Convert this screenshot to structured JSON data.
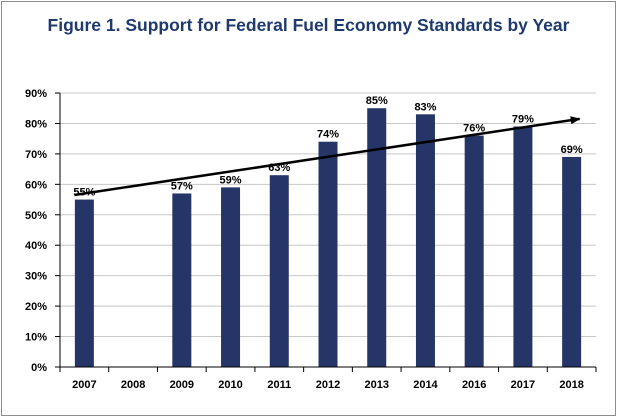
{
  "colors": {
    "title": "#1f3a6e",
    "bar": "#253568",
    "grid": "#c8c8c8",
    "axis": "#000000",
    "trend": "#000000"
  },
  "chart_data": {
    "type": "bar",
    "title": "Figure 1. Support for Federal Fuel Economy Standards by Year",
    "xlabel": "",
    "ylabel": "",
    "categories": [
      "2007",
      "2008",
      "2009",
      "2010",
      "2011",
      "2012",
      "2013",
      "2014",
      "2016",
      "2017",
      "2018"
    ],
    "values": [
      55,
      null,
      57,
      59,
      63,
      74,
      85,
      83,
      76,
      79,
      69
    ],
    "data_labels": [
      "55%",
      "",
      "57%",
      "59%",
      "63%",
      "74%",
      "85%",
      "83%",
      "76%",
      "79%",
      "69%"
    ],
    "ylim": [
      0,
      90
    ],
    "yticks": [
      0,
      10,
      20,
      30,
      40,
      50,
      60,
      70,
      80,
      90
    ],
    "ytick_labels": [
      "0%",
      "10%",
      "20%",
      "30%",
      "40%",
      "50%",
      "60%",
      "70%",
      "80%",
      "90%"
    ],
    "grid": true,
    "legend": "none",
    "trendline": {
      "type": "linear-arrow",
      "start": {
        "category": "2007",
        "value": 56.5
      },
      "end": {
        "category": "2018",
        "value": 81.5
      }
    }
  }
}
